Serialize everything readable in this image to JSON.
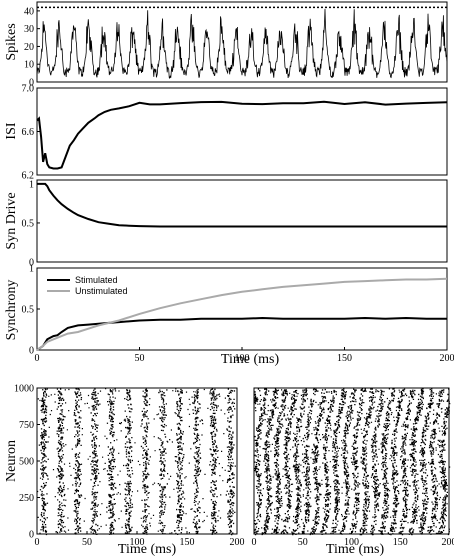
{
  "chart_data": [
    {
      "type": "line",
      "ylabel": "Spikes",
      "xlim": [
        0,
        200
      ],
      "ylim": [
        0,
        45
      ],
      "yticks": [
        "0",
        "10",
        "20",
        "30",
        "40"
      ],
      "threshold": 42,
      "series": [
        {
          "style": "noisy-oscillation",
          "period_ms": 7.2,
          "baseline": [
            2,
            8
          ],
          "peak_range": [
            22,
            38
          ]
        }
      ]
    },
    {
      "type": "line",
      "ylabel": "ISI",
      "xlim": [
        0,
        200
      ],
      "ylim": [
        6.2,
        7.0
      ],
      "yticks": [
        "6.2",
        "6.6",
        "7.0"
      ],
      "series": [
        {
          "x": [
            0,
            1,
            2,
            3,
            4,
            5,
            6,
            8,
            10,
            12,
            14,
            16,
            18,
            20,
            22,
            25,
            28,
            30,
            33,
            36,
            40,
            45,
            50,
            55,
            60,
            70,
            80,
            90,
            100,
            110,
            120,
            130,
            140,
            150,
            160,
            170,
            180,
            190,
            200
          ],
          "y": [
            6.7,
            6.72,
            6.55,
            6.32,
            6.4,
            6.3,
            6.27,
            6.26,
            6.26,
            6.27,
            6.37,
            6.47,
            6.52,
            6.58,
            6.62,
            6.68,
            6.72,
            6.75,
            6.78,
            6.8,
            6.82,
            6.84,
            6.85,
            6.85,
            6.86,
            6.86,
            6.86,
            6.86,
            6.86,
            6.86,
            6.86,
            6.86,
            6.86,
            6.86,
            6.86,
            6.86,
            6.86,
            6.86,
            6.86
          ]
        }
      ]
    },
    {
      "type": "line",
      "ylabel": "Syn Drive",
      "xlim": [
        0,
        200
      ],
      "ylim": [
        0,
        1.05
      ],
      "yticks": [
        "0",
        "0.5",
        "1"
      ],
      "series": [
        {
          "x": [
            0,
            2,
            4,
            5,
            6,
            8,
            10,
            12,
            15,
            18,
            20,
            25,
            30,
            35,
            40,
            45,
            50,
            60,
            70,
            80,
            100,
            120,
            140,
            160,
            180,
            200
          ],
          "y": [
            1.0,
            1.0,
            1.0,
            0.97,
            0.92,
            0.85,
            0.79,
            0.74,
            0.68,
            0.63,
            0.6,
            0.55,
            0.51,
            0.49,
            0.47,
            0.465,
            0.46,
            0.455,
            0.455,
            0.455,
            0.455,
            0.455,
            0.455,
            0.455,
            0.455,
            0.455
          ]
        }
      ]
    },
    {
      "type": "line",
      "ylabel": "Synchrony",
      "xlabel": "Time (ms)",
      "xlim": [
        0,
        200
      ],
      "ylim": [
        0,
        1.0
      ],
      "xticks": [
        "0",
        "50",
        "100",
        "150",
        "200"
      ],
      "yticks": [
        "0",
        "0.5",
        "1"
      ],
      "legend": "top-left",
      "series": [
        {
          "name": "Stimulated",
          "color": "#000000",
          "x": [
            0,
            3,
            5,
            8,
            10,
            12,
            15,
            20,
            25,
            30,
            35,
            40,
            50,
            60,
            70,
            80,
            90,
            100,
            110,
            120,
            130,
            140,
            150,
            160,
            170,
            180,
            190,
            200
          ],
          "y": [
            0.0,
            0.05,
            0.13,
            0.17,
            0.18,
            0.22,
            0.27,
            0.3,
            0.31,
            0.32,
            0.33,
            0.34,
            0.36,
            0.37,
            0.37,
            0.38,
            0.38,
            0.38,
            0.39,
            0.38,
            0.38,
            0.38,
            0.38,
            0.39,
            0.38,
            0.39,
            0.38,
            0.38
          ]
        },
        {
          "name": "Unstimulated",
          "color": "#aaaaaa",
          "x": [
            0,
            3,
            5,
            10,
            15,
            20,
            25,
            30,
            40,
            50,
            60,
            70,
            80,
            90,
            100,
            110,
            120,
            130,
            140,
            150,
            160,
            170,
            180,
            190,
            200
          ],
          "y": [
            0.0,
            0.05,
            0.1,
            0.15,
            0.2,
            0.22,
            0.26,
            0.3,
            0.36,
            0.44,
            0.51,
            0.57,
            0.62,
            0.67,
            0.71,
            0.74,
            0.77,
            0.79,
            0.81,
            0.83,
            0.84,
            0.85,
            0.86,
            0.86,
            0.87
          ]
        }
      ]
    },
    {
      "type": "scatter",
      "ylabel": "Neuron",
      "xlabel": "Time (ms)",
      "xlim": [
        0,
        200
      ],
      "ylim": [
        0,
        1000
      ],
      "xticks": [
        "0",
        "50",
        "100",
        "150",
        "200"
      ],
      "yticks": [
        "0",
        "250",
        "500",
        "750",
        "1000"
      ],
      "pattern": "synchronized-bands",
      "band_period_ms": 17
    },
    {
      "type": "scatter",
      "xlabel": "Time (ms)",
      "xlim": [
        0,
        200
      ],
      "ylim": [
        0,
        1000
      ],
      "xticks": [
        "0",
        "50",
        "100",
        "150",
        "200"
      ],
      "pattern": "diagonal-waves",
      "band_period_ms": 10
    }
  ]
}
